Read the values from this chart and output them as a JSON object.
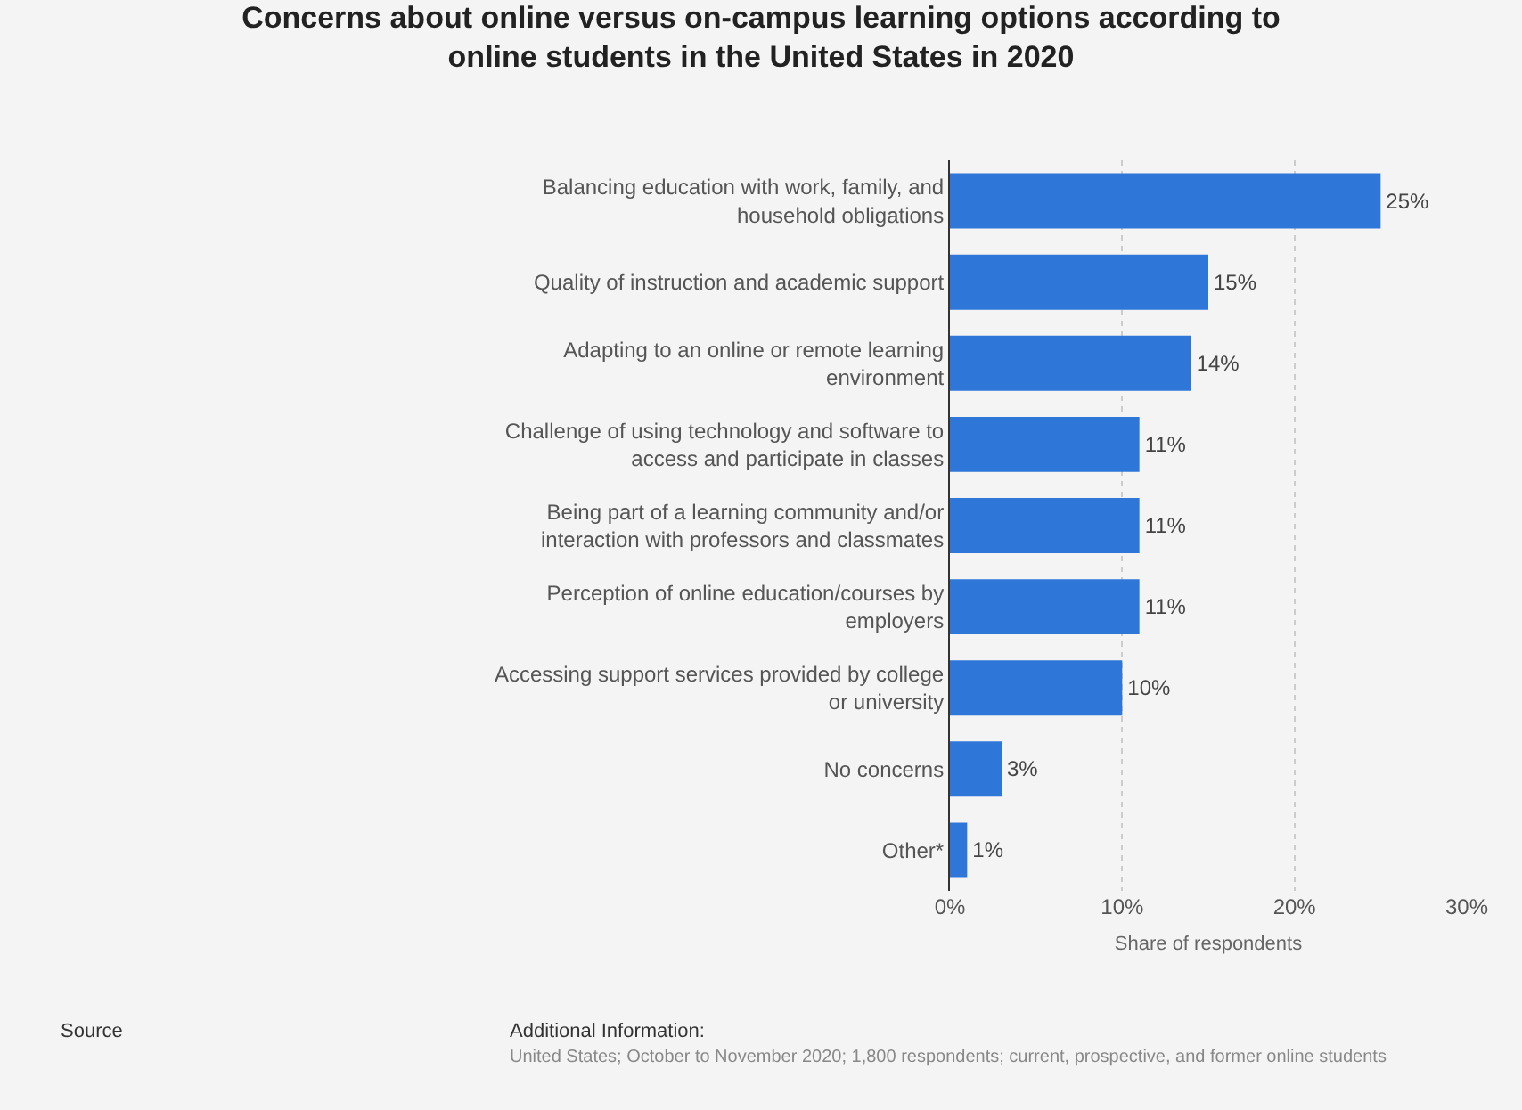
{
  "chart_data": {
    "type": "bar",
    "orientation": "horizontal",
    "title": "Concerns about online versus on-campus learning options according to online students in the United States in 2020",
    "xlabel": "Share of respondents",
    "categories": [
      "Balancing education with work, family, and household obligations",
      "Quality of instruction and academic support",
      "Adapting to an online or remote learning environment",
      "Challenge of using technology and software to access and participate in classes",
      "Being part of a learning community and/or interaction with professors and classmates",
      "Perception of online education/courses by employers",
      "Accessing support services provided by college or university",
      "No concerns",
      "Other*"
    ],
    "values": [
      25,
      15,
      14,
      11,
      11,
      11,
      10,
      3,
      1
    ],
    "value_labels": [
      "25%",
      "15%",
      "14%",
      "11%",
      "11%",
      "11%",
      "10%",
      "3%",
      "1%"
    ],
    "color": "#2f76d9",
    "xlim": [
      0,
      30
    ],
    "xticks": [
      {
        "value": 0,
        "label": "0%"
      },
      {
        "value": 10,
        "label": "10%"
      },
      {
        "value": 20,
        "label": "20%"
      },
      {
        "value": 30,
        "label": "30%"
      }
    ],
    "grid": "x",
    "annotations": [
      "Source",
      "Additional Information:",
      "United States; October to November 2020; 1,800 respondents; current, prospective, and former online students"
    ]
  }
}
